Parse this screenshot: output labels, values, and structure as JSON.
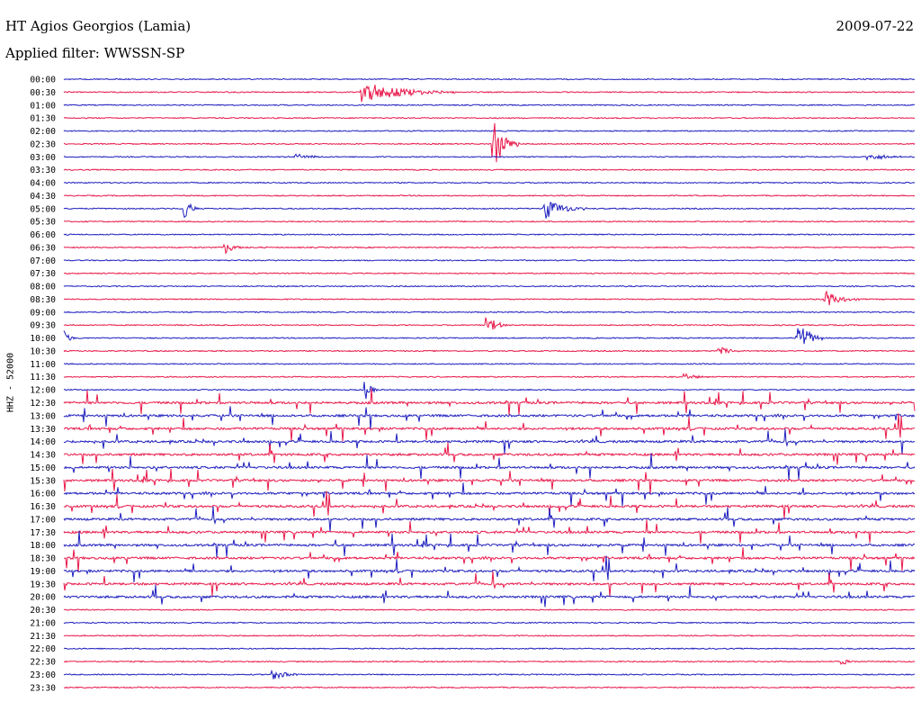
{
  "header": {
    "station": "HT Agios Georgios (Lamia)",
    "date": "2009-07-22",
    "filter": "Applied filter: WWSSN-SP",
    "channel": "HHZ - 52000"
  },
  "colors": {
    "trace_even": "#1f1fbf",
    "trace_odd": "#e8184a",
    "background": "#ffffff"
  },
  "chart_data": {
    "type": "line",
    "subtype": "helicorder (drum seismogram)",
    "title": "HT Agios Georgios (Lamia)",
    "subtitle": "Applied filter: WWSSN-SP",
    "date": "2009-07-22",
    "ylabel": "HHZ - 52000",
    "xlabel": "",
    "row_labels": [
      "00:00",
      "00:30",
      "01:00",
      "01:30",
      "02:00",
      "02:30",
      "03:00",
      "03:30",
      "04:00",
      "04:30",
      "05:00",
      "05:30",
      "06:00",
      "06:30",
      "07:00",
      "07:30",
      "08:00",
      "08:30",
      "09:00",
      "09:30",
      "10:00",
      "10:30",
      "11:00",
      "11:30",
      "12:00",
      "12:30",
      "13:00",
      "13:30",
      "14:00",
      "14:30",
      "15:00",
      "15:30",
      "16:00",
      "16:30",
      "17:00",
      "17:30",
      "18:00",
      "18:30",
      "19:00",
      "19:30",
      "20:00",
      "20:30",
      "21:00",
      "21:30",
      "22:00",
      "22:30",
      "23:00",
      "23:30"
    ],
    "row_minutes": 30,
    "series_colors": [
      "#1f1fbf",
      "#e8184a"
    ],
    "events": [
      {
        "row": "00:30",
        "pos": 0.35,
        "amp": 12,
        "dur": 0.1
      },
      {
        "row": "02:30",
        "pos": 0.505,
        "amp": 30,
        "dur": 0.02
      },
      {
        "row": "03:00",
        "pos": 0.27,
        "amp": 4,
        "dur": 0.03
      },
      {
        "row": "03:00",
        "pos": 0.945,
        "amp": 4,
        "dur": 0.04
      },
      {
        "row": "05:00",
        "pos": 0.142,
        "amp": 14,
        "dur": 0.01
      },
      {
        "row": "05:00",
        "pos": 0.565,
        "amp": 12,
        "dur": 0.04
      },
      {
        "row": "06:30",
        "pos": 0.19,
        "amp": 7,
        "dur": 0.02
      },
      {
        "row": "08:30",
        "pos": 0.895,
        "amp": 10,
        "dur": 0.03
      },
      {
        "row": "09:30",
        "pos": 0.495,
        "amp": 12,
        "dur": 0.02
      },
      {
        "row": "10:00",
        "pos": 0.0,
        "amp": 9,
        "dur": 0.01
      },
      {
        "row": "10:00",
        "pos": 0.862,
        "amp": 24,
        "dur": 0.02
      },
      {
        "row": "10:30",
        "pos": 0.77,
        "amp": 5,
        "dur": 0.02
      },
      {
        "row": "11:30",
        "pos": 0.73,
        "amp": 4,
        "dur": 0.02
      },
      {
        "row": "12:00",
        "pos": 0.355,
        "amp": 10,
        "dur": 0.01
      },
      {
        "row": "22:30",
        "pos": 0.915,
        "amp": 5,
        "dur": 0.01
      },
      {
        "row": "23:00",
        "pos": 0.245,
        "amp": 6,
        "dur": 0.03
      }
    ],
    "noisy_rows": [
      "12:30",
      "13:00",
      "13:30",
      "14:00",
      "14:30",
      "15:00",
      "15:30",
      "16:00",
      "16:30",
      "17:00",
      "17:30",
      "18:00",
      "18:30",
      "19:00",
      "19:30",
      "20:00"
    ],
    "legend": "none",
    "grid": false
  }
}
